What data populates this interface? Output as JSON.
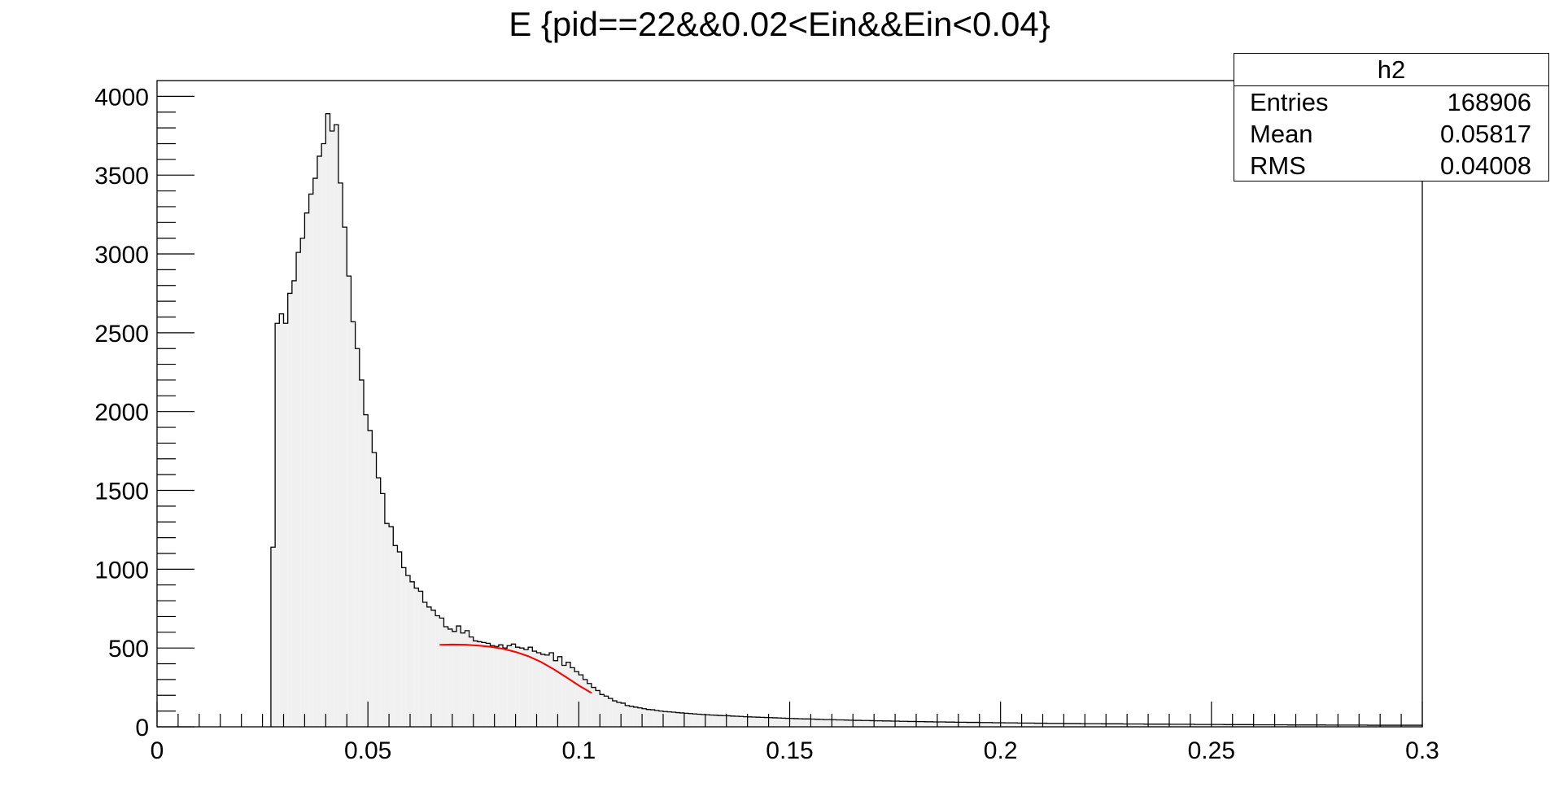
{
  "chart_data": {
    "type": "histogram",
    "title": "E {pid==22&&0.02<Ein&&Ein<0.04}",
    "xlabel": "",
    "ylabel": "",
    "xlim": [
      0,
      0.3
    ],
    "ylim": [
      0,
      4100
    ],
    "x_ticks": [
      "0",
      "0.05",
      "0.1",
      "0.15",
      "0.2",
      "0.25",
      "0.3"
    ],
    "y_ticks": [
      "0",
      "500",
      "1000",
      "1500",
      "2000",
      "2500",
      "3000",
      "3500",
      "4000"
    ],
    "bin_width": 0.001,
    "bins": [
      [
        0.027,
        1140
      ],
      [
        0.028,
        2560
      ],
      [
        0.029,
        2620
      ],
      [
        0.03,
        2560
      ],
      [
        0.031,
        2750
      ],
      [
        0.032,
        2830
      ],
      [
        0.033,
        3010
      ],
      [
        0.034,
        3100
      ],
      [
        0.035,
        3260
      ],
      [
        0.036,
        3380
      ],
      [
        0.037,
        3480
      ],
      [
        0.038,
        3620
      ],
      [
        0.039,
        3700
      ],
      [
        0.04,
        3890
      ],
      [
        0.041,
        3780
      ],
      [
        0.042,
        3820
      ],
      [
        0.043,
        3450
      ],
      [
        0.044,
        3170
      ],
      [
        0.045,
        2860
      ],
      [
        0.046,
        2570
      ],
      [
        0.047,
        2400
      ],
      [
        0.048,
        2200
      ],
      [
        0.049,
        1980
      ],
      [
        0.05,
        1880
      ],
      [
        0.051,
        1740
      ],
      [
        0.052,
        1580
      ],
      [
        0.053,
        1480
      ],
      [
        0.054,
        1290
      ],
      [
        0.055,
        1270
      ],
      [
        0.056,
        1150
      ],
      [
        0.057,
        1110
      ],
      [
        0.058,
        1010
      ],
      [
        0.059,
        960
      ],
      [
        0.06,
        920
      ],
      [
        0.061,
        880
      ],
      [
        0.062,
        860
      ],
      [
        0.063,
        790
      ],
      [
        0.064,
        760
      ],
      [
        0.065,
        740
      ],
      [
        0.066,
        705
      ],
      [
        0.067,
        690
      ],
      [
        0.068,
        635
      ],
      [
        0.069,
        620
      ],
      [
        0.07,
        605
      ],
      [
        0.071,
        640
      ],
      [
        0.072,
        595
      ],
      [
        0.073,
        610
      ],
      [
        0.074,
        570
      ],
      [
        0.075,
        545
      ],
      [
        0.076,
        540
      ],
      [
        0.077,
        535
      ],
      [
        0.078,
        530
      ],
      [
        0.079,
        515
      ],
      [
        0.08,
        510
      ],
      [
        0.081,
        520
      ],
      [
        0.082,
        500
      ],
      [
        0.083,
        515
      ],
      [
        0.084,
        525
      ],
      [
        0.085,
        505
      ],
      [
        0.086,
        500
      ],
      [
        0.087,
        490
      ],
      [
        0.088,
        505
      ],
      [
        0.089,
        480
      ],
      [
        0.09,
        470
      ],
      [
        0.091,
        460
      ],
      [
        0.092,
        455
      ],
      [
        0.093,
        470
      ],
      [
        0.094,
        420
      ],
      [
        0.095,
        445
      ],
      [
        0.096,
        390
      ],
      [
        0.097,
        410
      ],
      [
        0.098,
        375
      ],
      [
        0.099,
        350
      ],
      [
        0.1,
        330
      ],
      [
        0.101,
        300
      ],
      [
        0.102,
        275
      ],
      [
        0.103,
        250
      ],
      [
        0.104,
        230
      ],
      [
        0.105,
        205
      ],
      [
        0.106,
        195
      ],
      [
        0.107,
        180
      ],
      [
        0.108,
        165
      ],
      [
        0.109,
        155
      ],
      [
        0.11,
        150
      ],
      [
        0.111,
        135
      ],
      [
        0.112,
        130
      ],
      [
        0.113,
        125
      ],
      [
        0.114,
        120
      ],
      [
        0.115,
        115
      ],
      [
        0.116,
        110
      ],
      [
        0.117,
        108
      ],
      [
        0.118,
        104
      ],
      [
        0.119,
        100
      ],
      [
        0.12,
        97
      ],
      [
        0.121,
        95
      ],
      [
        0.122,
        93
      ],
      [
        0.123,
        90
      ],
      [
        0.124,
        88
      ],
      [
        0.125,
        86
      ],
      [
        0.126,
        84
      ],
      [
        0.127,
        82
      ],
      [
        0.128,
        80
      ],
      [
        0.129,
        78
      ],
      [
        0.13,
        77
      ],
      [
        0.131,
        75
      ],
      [
        0.132,
        74
      ],
      [
        0.133,
        72
      ],
      [
        0.134,
        71
      ],
      [
        0.135,
        70
      ],
      [
        0.136,
        68
      ],
      [
        0.137,
        67
      ],
      [
        0.138,
        66
      ],
      [
        0.139,
        64
      ],
      [
        0.14,
        63
      ],
      [
        0.141,
        62
      ],
      [
        0.142,
        61
      ],
      [
        0.143,
        60
      ],
      [
        0.144,
        59
      ],
      [
        0.145,
        58
      ],
      [
        0.146,
        57
      ],
      [
        0.147,
        56
      ],
      [
        0.148,
        55
      ],
      [
        0.149,
        54
      ],
      [
        0.15,
        53
      ],
      [
        0.151,
        52
      ],
      [
        0.152,
        51
      ],
      [
        0.153,
        50
      ],
      [
        0.154,
        50
      ],
      [
        0.155,
        49
      ],
      [
        0.156,
        48
      ],
      [
        0.157,
        47
      ],
      [
        0.158,
        46
      ],
      [
        0.159,
        46
      ],
      [
        0.16,
        45
      ],
      [
        0.161,
        44
      ],
      [
        0.162,
        44
      ],
      [
        0.163,
        43
      ],
      [
        0.164,
        42
      ],
      [
        0.165,
        41
      ],
      [
        0.166,
        41
      ],
      [
        0.167,
        40
      ],
      [
        0.168,
        40
      ],
      [
        0.169,
        39
      ],
      [
        0.17,
        38
      ],
      [
        0.171,
        38
      ],
      [
        0.172,
        37
      ],
      [
        0.173,
        37
      ],
      [
        0.174,
        36
      ],
      [
        0.175,
        36
      ],
      [
        0.176,
        35
      ],
      [
        0.177,
        35
      ],
      [
        0.178,
        34
      ],
      [
        0.179,
        34
      ],
      [
        0.18,
        33
      ],
      [
        0.181,
        33
      ],
      [
        0.182,
        32
      ],
      [
        0.183,
        32
      ],
      [
        0.184,
        31
      ],
      [
        0.185,
        31
      ],
      [
        0.186,
        31
      ],
      [
        0.187,
        30
      ],
      [
        0.188,
        30
      ],
      [
        0.189,
        29
      ],
      [
        0.19,
        29
      ],
      [
        0.191,
        29
      ],
      [
        0.192,
        28
      ],
      [
        0.193,
        28
      ],
      [
        0.194,
        28
      ],
      [
        0.195,
        27
      ],
      [
        0.196,
        27
      ],
      [
        0.197,
        27
      ],
      [
        0.198,
        26
      ],
      [
        0.199,
        26
      ],
      [
        0.2,
        26
      ],
      [
        0.201,
        25
      ],
      [
        0.202,
        25
      ],
      [
        0.203,
        25
      ],
      [
        0.204,
        24
      ],
      [
        0.205,
        24
      ],
      [
        0.206,
        24
      ],
      [
        0.207,
        24
      ],
      [
        0.208,
        23
      ],
      [
        0.209,
        23
      ],
      [
        0.21,
        23
      ],
      [
        0.211,
        22
      ],
      [
        0.212,
        22
      ],
      [
        0.213,
        22
      ],
      [
        0.214,
        22
      ],
      [
        0.215,
        21
      ],
      [
        0.216,
        21
      ],
      [
        0.217,
        21
      ],
      [
        0.218,
        21
      ],
      [
        0.219,
        20
      ],
      [
        0.22,
        20
      ],
      [
        0.221,
        20
      ],
      [
        0.222,
        20
      ],
      [
        0.223,
        20
      ],
      [
        0.224,
        19
      ],
      [
        0.225,
        19
      ],
      [
        0.226,
        19
      ],
      [
        0.227,
        19
      ],
      [
        0.228,
        19
      ],
      [
        0.229,
        18
      ],
      [
        0.23,
        18
      ],
      [
        0.231,
        18
      ],
      [
        0.232,
        18
      ],
      [
        0.233,
        18
      ],
      [
        0.234,
        17
      ],
      [
        0.235,
        17
      ],
      [
        0.236,
        17
      ],
      [
        0.237,
        17
      ],
      [
        0.238,
        17
      ],
      [
        0.239,
        17
      ],
      [
        0.24,
        16
      ],
      [
        0.241,
        16
      ],
      [
        0.242,
        16
      ],
      [
        0.243,
        16
      ],
      [
        0.244,
        16
      ],
      [
        0.245,
        16
      ],
      [
        0.246,
        15
      ],
      [
        0.247,
        15
      ],
      [
        0.248,
        15
      ],
      [
        0.249,
        15
      ],
      [
        0.25,
        15
      ],
      [
        0.251,
        15
      ],
      [
        0.252,
        15
      ],
      [
        0.253,
        14
      ],
      [
        0.254,
        14
      ],
      [
        0.255,
        14
      ],
      [
        0.256,
        14
      ],
      [
        0.257,
        14
      ],
      [
        0.258,
        14
      ],
      [
        0.259,
        14
      ],
      [
        0.26,
        13
      ],
      [
        0.261,
        13
      ],
      [
        0.262,
        13
      ],
      [
        0.263,
        13
      ],
      [
        0.264,
        13
      ],
      [
        0.265,
        13
      ],
      [
        0.266,
        13
      ],
      [
        0.267,
        13
      ],
      [
        0.268,
        12
      ],
      [
        0.269,
        12
      ],
      [
        0.27,
        12
      ],
      [
        0.271,
        12
      ],
      [
        0.272,
        12
      ],
      [
        0.273,
        12
      ],
      [
        0.274,
        12
      ],
      [
        0.275,
        12
      ],
      [
        0.276,
        12
      ],
      [
        0.277,
        11
      ],
      [
        0.278,
        11
      ],
      [
        0.279,
        11
      ],
      [
        0.28,
        11
      ],
      [
        0.281,
        11
      ],
      [
        0.282,
        11
      ],
      [
        0.283,
        11
      ],
      [
        0.284,
        11
      ],
      [
        0.285,
        11
      ],
      [
        0.286,
        11
      ],
      [
        0.287,
        10
      ],
      [
        0.288,
        10
      ],
      [
        0.289,
        10
      ],
      [
        0.29,
        10
      ],
      [
        0.291,
        10
      ],
      [
        0.292,
        10
      ],
      [
        0.293,
        10
      ],
      [
        0.294,
        10
      ],
      [
        0.295,
        10
      ],
      [
        0.296,
        10
      ],
      [
        0.297,
        10
      ],
      [
        0.298,
        10
      ],
      [
        0.299,
        10
      ]
    ],
    "fit_curve": {
      "color": "#ff0000",
      "points": [
        [
          0.067,
          520
        ],
        [
          0.07,
          522
        ],
        [
          0.073,
          521
        ],
        [
          0.076,
          516
        ],
        [
          0.079,
          508
        ],
        [
          0.082,
          495
        ],
        [
          0.085,
          475
        ],
        [
          0.088,
          448
        ],
        [
          0.091,
          412
        ],
        [
          0.094,
          366
        ],
        [
          0.097,
          315
        ],
        [
          0.1,
          262
        ],
        [
          0.103,
          215
        ]
      ]
    },
    "fill_color": "#f0f0f0",
    "line_color": "#000000",
    "grid": false,
    "legend": "none"
  },
  "stats_box": {
    "name": "h2",
    "rows": [
      {
        "label": "Entries",
        "value": "168906"
      },
      {
        "label": "Mean",
        "value": "0.05817"
      },
      {
        "label": "RMS",
        "value": "0.04008"
      }
    ]
  }
}
